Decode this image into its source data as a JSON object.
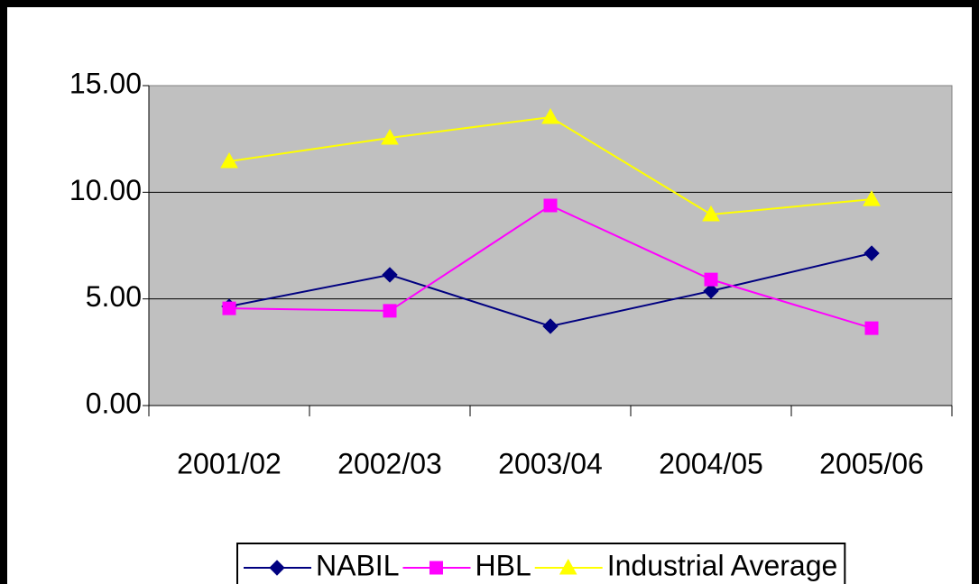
{
  "chart_data": {
    "type": "line",
    "categories": [
      "2001/02",
      "2002/03",
      "2003/04",
      "2004/05",
      "2005/06"
    ],
    "series": [
      {
        "name": "NABIL",
        "color": "#000080",
        "marker": "diamond",
        "values": [
          4.65,
          6.13,
          3.72,
          5.37,
          7.14
        ]
      },
      {
        "name": "HBL",
        "color": "#ff00ff",
        "marker": "square",
        "values": [
          4.56,
          4.44,
          9.38,
          5.91,
          3.63
        ]
      },
      {
        "name": "Industrial Average",
        "color": "#ffff00",
        "marker": "triangle",
        "values": [
          11.45,
          12.55,
          13.52,
          8.96,
          9.67
        ]
      }
    ],
    "ylim": [
      0,
      15
    ],
    "yticks": [
      {
        "value": 0,
        "label": "0.00"
      },
      {
        "value": 5,
        "label": "5.00"
      },
      {
        "value": 10,
        "label": "10.00"
      },
      {
        "value": 15,
        "label": "15.00"
      }
    ],
    "grid": true,
    "plot_background": "#c0c0c0",
    "legend": "bottom"
  }
}
